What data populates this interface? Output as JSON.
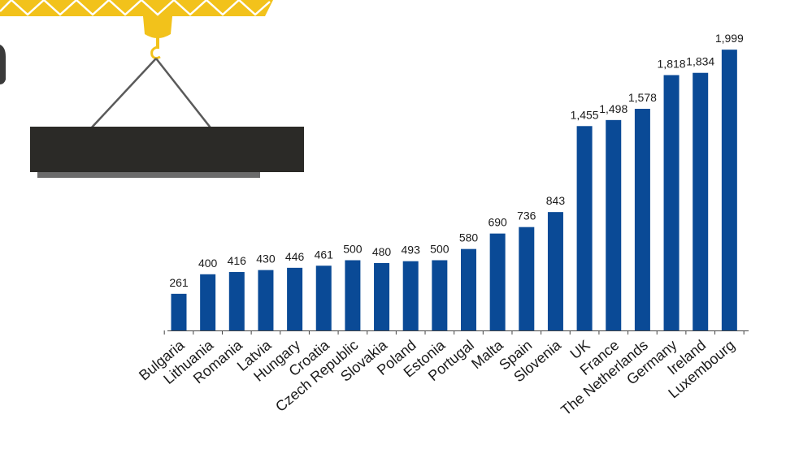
{
  "colors": {
    "bar": "#0a4a96",
    "crane_yellow": "#f2c21b",
    "crane_white": "#ffffff",
    "load_dark": "#2b2a27",
    "load_shadow": "#6b6b6b",
    "rope": "#5a5a5a"
  },
  "decoration": {
    "illustration": "construction-crane-lifting-beam"
  },
  "chart_data": {
    "type": "bar",
    "title": "",
    "xlabel": "",
    "ylabel": "",
    "ylim": [
      0,
      2000
    ],
    "grid": false,
    "legend": "none",
    "categories": [
      "Bulgaria",
      "Lithuania",
      "Romania",
      "Latvia",
      "Hungary",
      "Croatia",
      "Czech Republic",
      "Slovakia",
      "Poland",
      "Estonia",
      "Portugal",
      "Malta",
      "Spain",
      "Slovenia",
      "UK",
      "France",
      "The Netherlands",
      "Germany",
      "Ireland",
      "Luxembourg"
    ],
    "values": [
      261,
      400,
      416,
      430,
      446,
      461,
      500,
      480,
      493,
      500,
      580,
      690,
      736,
      843,
      1455,
      1498,
      1578,
      1818,
      1834,
      1999
    ],
    "value_labels": [
      "261",
      "400",
      "416",
      "430",
      "446",
      "461",
      "500",
      "480",
      "493",
      "500",
      "580",
      "690",
      "736",
      "843",
      "1,455",
      "1,498",
      "1,578",
      "1,818",
      "1,834",
      "1,999"
    ]
  }
}
